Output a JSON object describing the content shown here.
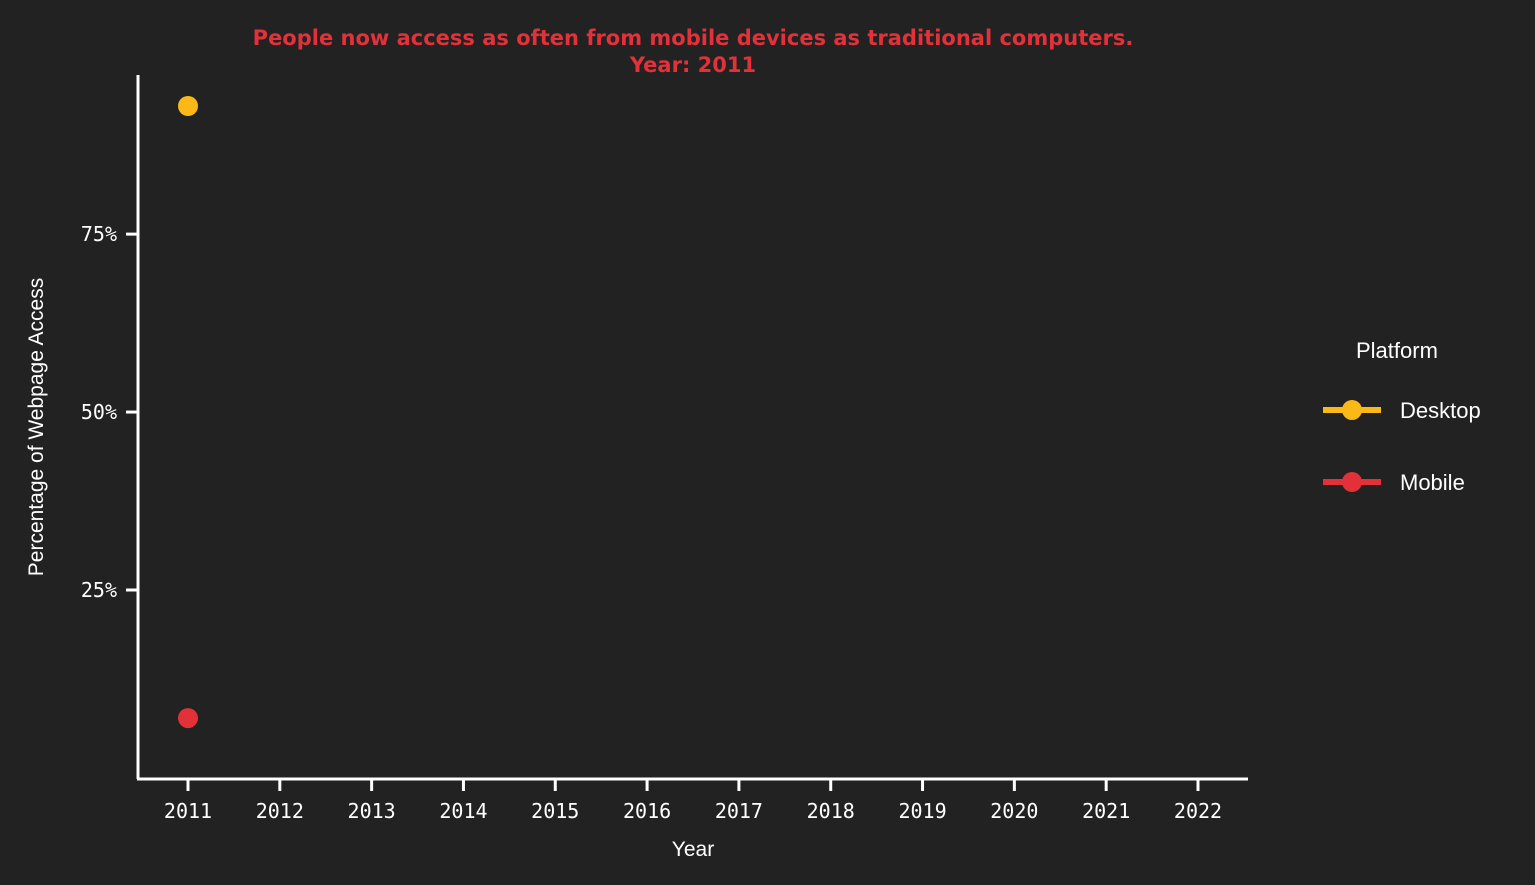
{
  "chart_data": {
    "type": "line",
    "title": "People now access as often from mobile devices as traditional computers.",
    "subtitle": "Year: 2011",
    "xlabel": "Year",
    "ylabel": "Percentage of Webpage Access",
    "x_ticks": [
      "2011",
      "2012",
      "2013",
      "2014",
      "2015",
      "2016",
      "2017",
      "2018",
      "2019",
      "2020",
      "2021",
      "2022"
    ],
    "x_range": [
      2011,
      2022
    ],
    "y_ticks": [
      {
        "value": 0.25,
        "label": "25%"
      },
      {
        "value": 0.5,
        "label": "50%"
      },
      {
        "value": 0.75,
        "label": "75%"
      }
    ],
    "ylim": [
      0.028,
      0.93
    ],
    "grid": false,
    "legend": {
      "title": "Platform",
      "placement": "right"
    },
    "series": [
      {
        "name": "Desktop",
        "color": "#fbb917",
        "x": [
          2011
        ],
        "y": [
          0.93
        ]
      },
      {
        "name": "Mobile",
        "color": "#e3313a",
        "x": [
          2011
        ],
        "y": [
          0.07
        ]
      }
    ]
  }
}
